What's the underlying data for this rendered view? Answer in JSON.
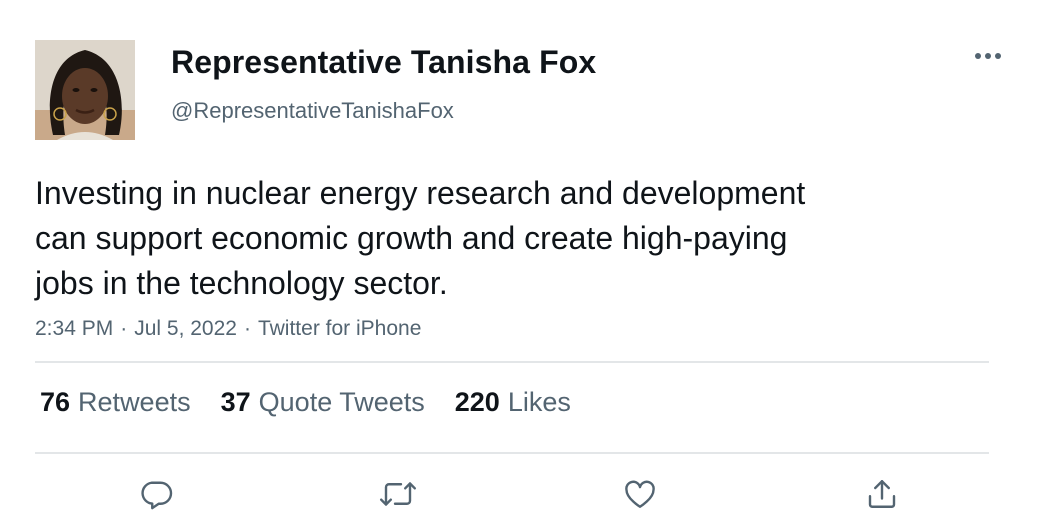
{
  "author": {
    "display_name": "Representative Tanisha Fox",
    "handle": "@RepresentativeTanishaFox",
    "avatar_icon": "profile-photo"
  },
  "tweet": {
    "text_lines": [
      "Investing in nuclear energy research and development",
      "can support economic growth and create high-paying",
      "jobs in the technology sector."
    ],
    "time": "2:34 PM",
    "date": "Jul 5, 2022",
    "source": "Twitter for iPhone",
    "separator": "·"
  },
  "stats": {
    "retweets": {
      "count": "76",
      "label": "Retweets"
    },
    "quotes": {
      "count": "37",
      "label": "Quote Tweets"
    },
    "likes": {
      "count": "220",
      "label": "Likes"
    }
  },
  "actions": [
    {
      "name": "reply-icon"
    },
    {
      "name": "retweet-icon"
    },
    {
      "name": "like-icon"
    },
    {
      "name": "share-icon"
    }
  ],
  "colors": {
    "primary_text": "#0f1419",
    "secondary_text": "#536471",
    "divider": "#e3e6e8"
  }
}
